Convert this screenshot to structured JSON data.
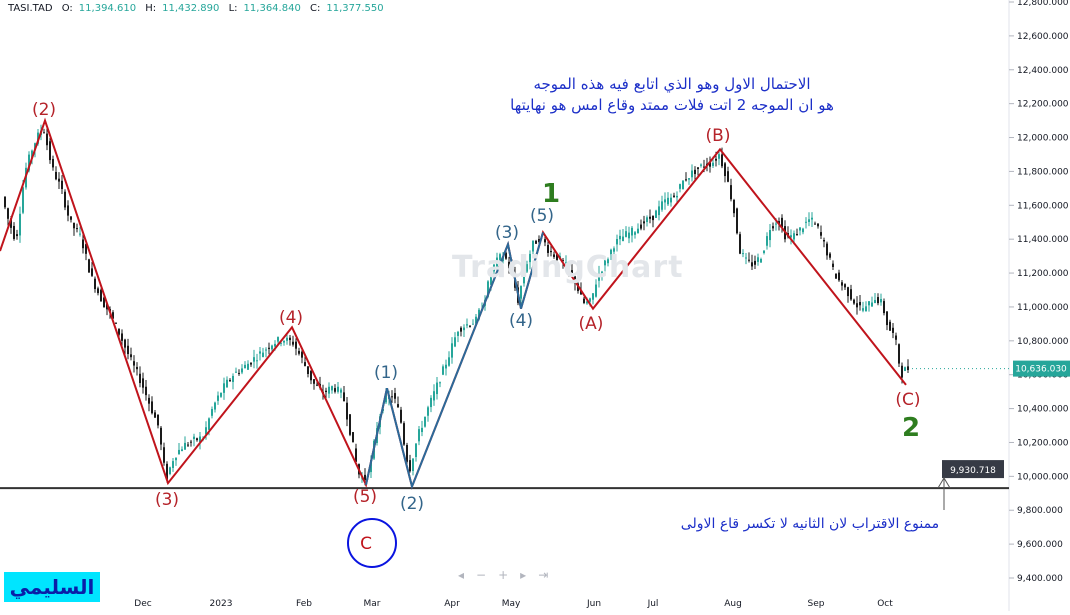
{
  "ohlc": {
    "symbol": "TASI.TAD",
    "open_label": "O:",
    "open": "11,394.610",
    "high_label": "H:",
    "high": "11,432.890",
    "low_label": "L:",
    "low": "11,364.840",
    "close_label": "C:",
    "close": "11,377.550"
  },
  "watermark": "TradingChart",
  "brand": "السليمي",
  "toolbar": [
    "◂",
    "−",
    "+",
    "▸",
    "⇥"
  ],
  "colors": {
    "up": "#26a69a",
    "down": "#1a1a1a",
    "wave_red": "#c0141c",
    "wave_blue": "#2b6a9a",
    "label_red": "#b5232a",
    "label_blue": "#33658a",
    "green": "#2e7d1f",
    "note_blue": "#1c2fc8",
    "circle_blue": "#0a14e0"
  },
  "chart_data": {
    "type": "candlestick",
    "ylim": [
      9400,
      12800
    ],
    "y_ticks": [
      "12,800.000",
      "12,600.000",
      "12,400.000",
      "12,200.000",
      "12,000.000",
      "11,800.000",
      "11,600.000",
      "11,400.000",
      "11,200.000",
      "11,000.000",
      "10,800.000",
      "10,600.000",
      "10,400.000",
      "10,200.000",
      "10,000.000",
      "9,800.000",
      "9,600.000",
      "9,400.000"
    ],
    "y_tick_values": [
      12800,
      12600,
      12400,
      12200,
      12000,
      11800,
      11600,
      11400,
      11200,
      11000,
      10800,
      10600,
      10400,
      10200,
      10000,
      9800,
      9600,
      9400
    ],
    "x_ticks": [
      {
        "label": "Dec",
        "x": 143
      },
      {
        "label": "2023",
        "x": 221
      },
      {
        "label": "Feb",
        "x": 304
      },
      {
        "label": "Mar",
        "x": 372
      },
      {
        "label": "Apr",
        "x": 452
      },
      {
        "label": "May",
        "x": 511
      },
      {
        "label": "Jun",
        "x": 594
      },
      {
        "label": "Jul",
        "x": 653
      },
      {
        "label": "Aug",
        "x": 733
      },
      {
        "label": "Sep",
        "x": 816
      },
      {
        "label": "Oct",
        "x": 885
      }
    ],
    "last_price": {
      "label": "10,636.030",
      "value": 10636
    },
    "horizontal_level": {
      "label": "9,930.718",
      "value": 9930.7
    },
    "price_path": [
      [
        4,
        11650
      ],
      [
        10,
        11520
      ],
      [
        18,
        11390
      ],
      [
        27,
        11800
      ],
      [
        35,
        11950
      ],
      [
        45,
        12070
      ],
      [
        54,
        11820
      ],
      [
        63,
        11700
      ],
      [
        72,
        11500
      ],
      [
        83,
        11410
      ],
      [
        93,
        11180
      ],
      [
        103,
        11050
      ],
      [
        113,
        10950
      ],
      [
        123,
        10820
      ],
      [
        133,
        10680
      ],
      [
        143,
        10560
      ],
      [
        152,
        10420
      ],
      [
        160,
        10300
      ],
      [
        168,
        9980
      ],
      [
        176,
        10120
      ],
      [
        185,
        10180
      ],
      [
        195,
        10210
      ],
      [
        205,
        10230
      ],
      [
        215,
        10410
      ],
      [
        225,
        10520
      ],
      [
        235,
        10600
      ],
      [
        245,
        10640
      ],
      [
        255,
        10690
      ],
      [
        265,
        10740
      ],
      [
        275,
        10790
      ],
      [
        285,
        10810
      ],
      [
        295,
        10790
      ],
      [
        305,
        10680
      ],
      [
        315,
        10550
      ],
      [
        325,
        10490
      ],
      [
        335,
        10530
      ],
      [
        345,
        10480
      ],
      [
        352,
        10270
      ],
      [
        360,
        10020
      ],
      [
        366,
        9975
      ],
      [
        372,
        10050
      ],
      [
        380,
        10330
      ],
      [
        387,
        10460
      ],
      [
        395,
        10480
      ],
      [
        402,
        10360
      ],
      [
        408,
        10120
      ],
      [
        412,
        10050
      ],
      [
        420,
        10240
      ],
      [
        430,
        10400
      ],
      [
        440,
        10550
      ],
      [
        450,
        10700
      ],
      [
        460,
        10870
      ],
      [
        470,
        10900
      ],
      [
        478,
        10920
      ],
      [
        486,
        11040
      ],
      [
        494,
        11220
      ],
      [
        500,
        11280
      ],
      [
        506,
        11310
      ],
      [
        513,
        11210
      ],
      [
        520,
        11040
      ],
      [
        527,
        11230
      ],
      [
        535,
        11370
      ],
      [
        543,
        11420
      ],
      [
        551,
        11330
      ],
      [
        560,
        11290
      ],
      [
        568,
        11240
      ],
      [
        577,
        11150
      ],
      [
        585,
        11020
      ],
      [
        593,
        11030
      ],
      [
        600,
        11190
      ],
      [
        608,
        11270
      ],
      [
        616,
        11370
      ],
      [
        626,
        11420
      ],
      [
        636,
        11450
      ],
      [
        646,
        11500
      ],
      [
        656,
        11540
      ],
      [
        666,
        11620
      ],
      [
        676,
        11650
      ],
      [
        686,
        11750
      ],
      [
        696,
        11800
      ],
      [
        706,
        11840
      ],
      [
        714,
        11850
      ],
      [
        721,
        11900
      ],
      [
        728,
        11780
      ],
      [
        735,
        11600
      ],
      [
        742,
        11330
      ],
      [
        749,
        11260
      ],
      [
        756,
        11250
      ],
      [
        764,
        11310
      ],
      [
        772,
        11470
      ],
      [
        780,
        11520
      ],
      [
        788,
        11410
      ],
      [
        796,
        11420
      ],
      [
        804,
        11470
      ],
      [
        812,
        11520
      ],
      [
        820,
        11460
      ],
      [
        828,
        11340
      ],
      [
        836,
        11200
      ],
      [
        844,
        11130
      ],
      [
        852,
        11070
      ],
      [
        860,
        11000
      ],
      [
        868,
        10990
      ],
      [
        876,
        11060
      ],
      [
        884,
        11020
      ],
      [
        890,
        10880
      ],
      [
        897,
        10820
      ],
      [
        903,
        10600
      ],
      [
        908,
        10636
      ]
    ],
    "series": [
      {
        "name": "",
        "points": [
          [
            0,
            11330
          ],
          [
            45,
            12100
          ],
          [
            168,
            9960
          ],
          [
            292,
            10880
          ],
          [
            366,
            9950
          ],
          [
            387,
            10520
          ],
          [
            412,
            9940
          ],
          [
            508,
            11370
          ],
          [
            521,
            10990
          ],
          [
            543,
            11440
          ],
          [
            593,
            10990
          ],
          [
            720,
            11930
          ],
          [
            906,
            10540
          ]
        ]
      },
      {
        "name": "",
        "points": [
          [
            366,
            9950
          ],
          [
            387,
            10520
          ],
          [
            412,
            9940
          ],
          [
            508,
            11370
          ],
          [
            521,
            10990
          ],
          [
            543,
            11440
          ]
        ]
      }
    ]
  },
  "wave_labels": [
    {
      "text": "(2)",
      "x": 44,
      "y": 109,
      "color": "label_red"
    },
    {
      "text": "(3)",
      "x": 167,
      "y": 499,
      "color": "label_red"
    },
    {
      "text": "(4)",
      "x": 291,
      "y": 317,
      "color": "label_red"
    },
    {
      "text": "(5)",
      "x": 365,
      "y": 496,
      "color": "label_red"
    },
    {
      "text": "(1)",
      "x": 386,
      "y": 372,
      "color": "label_blue"
    },
    {
      "text": "(2)",
      "x": 412,
      "y": 503,
      "color": "label_blue"
    },
    {
      "text": "(3)",
      "x": 507,
      "y": 232,
      "color": "label_blue"
    },
    {
      "text": "(4)",
      "x": 521,
      "y": 320,
      "color": "label_blue"
    },
    {
      "text": "(5)",
      "x": 542,
      "y": 215,
      "color": "label_blue"
    },
    {
      "text": "(A)",
      "x": 591,
      "y": 323,
      "color": "label_red"
    },
    {
      "text": "(B)",
      "x": 718,
      "y": 135,
      "color": "label_red"
    },
    {
      "text": "(C)",
      "x": 908,
      "y": 399,
      "color": "label_red"
    }
  ],
  "big_labels": [
    {
      "text": "1",
      "x": 551,
      "y": 192,
      "color": "green"
    },
    {
      "text": "2",
      "x": 911,
      "y": 426,
      "color": "green"
    }
  ],
  "circle_label": {
    "text": "C",
    "x": 372,
    "y": 543
  },
  "annotations": {
    "note_line1": "الاحتمال الاول وهو الذي اتابع فيه هذه الموجه",
    "note_line2": "هو ان الموجه 2 اتت فلات ممتد وقاع امس هو نهايتها",
    "bottom_note": "ممنوع الاقتراب لان الثانيه لا تكسر قاع الاولى"
  }
}
